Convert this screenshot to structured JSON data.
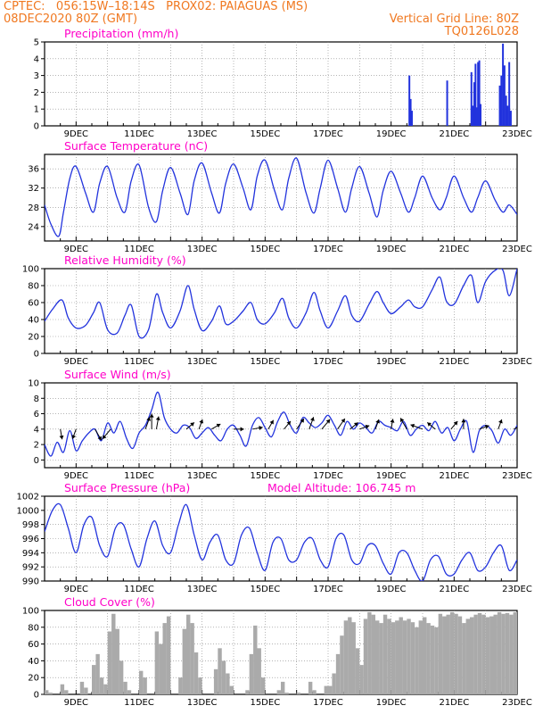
{
  "header": {
    "line1_left": "CPTEC:   056:15W–18:14S   PROX02: PAIAGUAS (MS)",
    "line2_left": "08DEC2020 80Z (GMT)",
    "line2_right": "Vertical Grid Line: 80Z",
    "line3_right": "TQ0126L028"
  },
  "colors": {
    "header": "#f07820",
    "title": "#ff00c8",
    "line": "#2233dd",
    "cloud": "#aaaaaa",
    "arrow": "#000000"
  },
  "chart_data": [
    {
      "id": "precip",
      "type": "bar",
      "title": "Precipitation (mm/h)",
      "subtitle": "",
      "xlabel": "",
      "ylabel": "",
      "xlim": [
        8.0,
        23.0
      ],
      "ylim": [
        0,
        5
      ],
      "yticks": [
        "0",
        "1",
        "2",
        "3",
        "4",
        "5"
      ],
      "xticks": [
        "9DEC",
        "11DEC",
        "13DEC",
        "15DEC",
        "17DEC",
        "19DEC",
        "21DEC",
        "23DEC"
      ],
      "xtick_values": [
        9,
        11,
        13,
        15,
        17,
        19,
        21,
        23
      ],
      "grid": true,
      "x": [
        19.58,
        19.62,
        19.66,
        20.78,
        21.55,
        21.6,
        21.64,
        21.68,
        21.72,
        21.76,
        21.8,
        21.84,
        22.45,
        22.5,
        22.55,
        22.6,
        22.65,
        22.7,
        22.75,
        22.8
      ],
      "values": [
        3.0,
        1.6,
        0.9,
        2.7,
        3.2,
        1.2,
        2.6,
        3.7,
        1.1,
        3.8,
        3.9,
        1.3,
        2.4,
        3.0,
        4.9,
        3.6,
        1.8,
        1.2,
        3.8,
        0.9
      ]
    },
    {
      "id": "temp",
      "type": "line",
      "title": "Surface Temperature (nC)",
      "subtitle": "",
      "xlabel": "",
      "ylabel": "",
      "xlim": [
        8.0,
        23.0
      ],
      "ylim": [
        21,
        39
      ],
      "yticks": [
        "24",
        "28",
        "32",
        "36"
      ],
      "ytick_values": [
        24,
        28,
        32,
        36
      ],
      "xticks": [
        "9DEC",
        "11DEC",
        "13DEC",
        "15DEC",
        "17DEC",
        "19DEC",
        "21DEC",
        "23DEC"
      ],
      "xtick_values": [
        9,
        11,
        13,
        15,
        17,
        19,
        21,
        23
      ],
      "grid": true,
      "x": [
        8.0,
        8.2,
        8.45,
        8.6,
        8.8,
        9.0,
        9.3,
        9.55,
        9.75,
        10.0,
        10.3,
        10.55,
        10.75,
        11.0,
        11.3,
        11.55,
        11.75,
        12.0,
        12.3,
        12.55,
        12.75,
        13.0,
        13.3,
        13.55,
        13.75,
        14.0,
        14.3,
        14.55,
        14.75,
        15.0,
        15.3,
        15.55,
        15.75,
        16.0,
        16.3,
        16.55,
        16.75,
        17.0,
        17.3,
        17.55,
        17.75,
        18.0,
        18.3,
        18.55,
        18.75,
        19.0,
        19.3,
        19.55,
        19.75,
        20.0,
        20.3,
        20.55,
        20.75,
        21.0,
        21.3,
        21.55,
        21.75,
        22.0,
        22.3,
        22.55,
        22.75,
        23.0
      ],
      "values": [
        28.5,
        24.5,
        22.0,
        27.0,
        34.0,
        36.5,
        31.0,
        27.0,
        33.0,
        36.5,
        30.0,
        27.0,
        33.5,
        36.8,
        28.0,
        25.0,
        31.5,
        36.3,
        31.0,
        26.5,
        33.5,
        37.2,
        31.0,
        26.8,
        33.0,
        37.0,
        32.0,
        27.5,
        34.5,
        37.8,
        31.5,
        27.5,
        34.0,
        38.2,
        31.0,
        26.8,
        32.0,
        37.8,
        32.0,
        27.0,
        32.0,
        36.5,
        31.0,
        26.0,
        31.5,
        35.5,
        31.0,
        27.0,
        30.0,
        34.5,
        30.0,
        27.5,
        30.0,
        34.5,
        30.0,
        27.0,
        30.0,
        33.5,
        29.5,
        27.0,
        28.5,
        26.5
      ]
    },
    {
      "id": "rh",
      "type": "line",
      "title": "Relative Humidity (%)",
      "subtitle": "",
      "xlabel": "",
      "ylabel": "",
      "xlim": [
        8.0,
        23.0
      ],
      "ylim": [
        0,
        100
      ],
      "yticks": [
        "0",
        "20",
        "40",
        "60",
        "80",
        "100"
      ],
      "ytick_values": [
        0,
        20,
        40,
        60,
        80,
        100
      ],
      "xticks": [
        "9DEC",
        "11DEC",
        "13DEC",
        "15DEC",
        "17DEC",
        "19DEC",
        "21DEC",
        "23DEC"
      ],
      "xtick_values": [
        9,
        11,
        13,
        15,
        17,
        19,
        21,
        23
      ],
      "grid": true,
      "x": [
        8.0,
        8.25,
        8.55,
        8.75,
        9.0,
        9.3,
        9.55,
        9.75,
        10.0,
        10.3,
        10.55,
        10.75,
        11.0,
        11.3,
        11.55,
        11.75,
        12.0,
        12.3,
        12.55,
        12.75,
        13.0,
        13.3,
        13.55,
        13.75,
        14.0,
        14.3,
        14.55,
        14.75,
        15.0,
        15.3,
        15.55,
        15.75,
        16.0,
        16.3,
        16.55,
        16.75,
        17.0,
        17.3,
        17.55,
        17.75,
        18.0,
        18.3,
        18.55,
        18.75,
        19.0,
        19.3,
        19.55,
        19.75,
        20.0,
        20.3,
        20.55,
        20.75,
        21.0,
        21.3,
        21.55,
        21.75,
        22.0,
        22.3,
        22.55,
        22.75,
        23.0
      ],
      "values": [
        38.0,
        52.0,
        63.0,
        42.0,
        30.0,
        33.0,
        48.0,
        60.0,
        28.0,
        24.0,
        45.0,
        57.0,
        20.0,
        28.0,
        70.0,
        48.0,
        30.0,
        50.0,
        80.0,
        52.0,
        27.0,
        38.0,
        56.0,
        35.0,
        38.0,
        50.0,
        60.0,
        40.0,
        35.0,
        48.0,
        65.0,
        42.0,
        30.0,
        48.0,
        72.0,
        50.0,
        30.0,
        50.0,
        68.0,
        45.0,
        38.0,
        58.0,
        73.0,
        60.0,
        47.0,
        55.0,
        63.0,
        55.0,
        55.0,
        75.0,
        90.0,
        62.0,
        58.0,
        80.0,
        92.0,
        60.0,
        85.0,
        98.0,
        98.0,
        68.0,
        100.0
      ]
    },
    {
      "id": "wind",
      "type": "line",
      "title": "Surface Wind (m/s)",
      "subtitle": "",
      "xlabel": "",
      "ylabel": "",
      "xlim": [
        8.0,
        23.0
      ],
      "ylim": [
        -1,
        10
      ],
      "yticks": [
        "0",
        "2",
        "4",
        "6",
        "8",
        "10"
      ],
      "ytick_values": [
        0,
        2,
        4,
        6,
        8,
        10
      ],
      "xticks": [
        "9DEC",
        "11DEC",
        "13DEC",
        "15DEC",
        "17DEC",
        "19DEC",
        "21DEC",
        "23DEC"
      ],
      "xtick_values": [
        9,
        11,
        13,
        15,
        17,
        19,
        21,
        23
      ],
      "grid": true,
      "x": [
        8.0,
        8.2,
        8.4,
        8.6,
        8.8,
        9.0,
        9.2,
        9.4,
        9.6,
        9.8,
        10.0,
        10.2,
        10.4,
        10.6,
        10.8,
        11.0,
        11.2,
        11.4,
        11.6,
        11.8,
        12.0,
        12.2,
        12.4,
        12.6,
        12.8,
        13.0,
        13.2,
        13.4,
        13.6,
        13.8,
        14.0,
        14.2,
        14.4,
        14.6,
        14.8,
        15.0,
        15.2,
        15.4,
        15.6,
        15.8,
        16.0,
        16.2,
        16.4,
        16.6,
        16.8,
        17.0,
        17.2,
        17.4,
        17.6,
        17.8,
        18.0,
        18.2,
        18.4,
        18.6,
        18.8,
        19.0,
        19.2,
        19.4,
        19.6,
        19.8,
        20.0,
        20.2,
        20.4,
        20.6,
        20.8,
        21.0,
        21.2,
        21.4,
        21.6,
        21.8,
        22.0,
        22.2,
        22.4,
        22.6,
        22.8,
        23.0
      ],
      "values": [
        2.0,
        0.5,
        2.3,
        1.0,
        3.8,
        1.2,
        2.5,
        3.5,
        4.0,
        2.5,
        4.8,
        3.5,
        5.0,
        2.8,
        1.5,
        3.5,
        4.5,
        6.5,
        8.8,
        5.5,
        4.0,
        3.5,
        4.5,
        4.2,
        2.8,
        3.5,
        4.2,
        3.2,
        2.5,
        4.0,
        4.5,
        3.2,
        1.8,
        4.5,
        5.5,
        4.2,
        3.0,
        5.0,
        6.2,
        4.5,
        3.5,
        5.5,
        4.8,
        4.2,
        4.8,
        5.8,
        4.5,
        3.2,
        5.0,
        4.0,
        4.8,
        4.2,
        3.5,
        5.0,
        4.5,
        4.2,
        3.8,
        5.0,
        3.2,
        4.0,
        4.5,
        3.8,
        5.0,
        3.5,
        4.2,
        2.5,
        4.0,
        5.0,
        1.0,
        3.8,
        4.5,
        3.8,
        2.2,
        4.0,
        3.2,
        4.5
      ],
      "vectors": {
        "x": [
          8.5,
          9.0,
          9.6,
          10.1,
          11.2,
          11.4,
          11.55,
          12.5,
          12.9,
          13.3,
          14.0,
          14.6,
          15.1,
          15.6,
          16.0,
          16.4,
          16.8,
          17.3,
          17.7,
          18.0,
          18.5,
          19.0,
          19.5,
          20.0,
          20.4,
          20.9,
          21.3,
          21.8,
          22.4,
          22.9
        ],
        "dir_deg": [
          350,
          20,
          330,
          40,
          200,
          180,
          190,
          230,
          200,
          240,
          270,
          260,
          210,
          220,
          215,
          200,
          220,
          215,
          230,
          250,
          200,
          190,
          150,
          110,
          130,
          220,
          180,
          250,
          200,
          240
        ],
        "speed": [
          2.0,
          2.0,
          3.0,
          3.0,
          3.0,
          4.0,
          3.0,
          2.0,
          2.0,
          2.0,
          2.0,
          2.0,
          2.0,
          2.0,
          3.0,
          3.0,
          3.0,
          3.0,
          2.0,
          2.0,
          2.0,
          2.0,
          3.0,
          3.0,
          2.0,
          2.0,
          2.0,
          2.0,
          2.0,
          2.0
        ]
      }
    },
    {
      "id": "pressure",
      "type": "line",
      "title": "Surface Pressure (hPa)",
      "subtitle": "Model Altitude: 106.745 m",
      "xlabel": "",
      "ylabel": "",
      "xlim": [
        8.0,
        23.0
      ],
      "ylim": [
        990,
        1002
      ],
      "yticks": [
        "990",
        "992",
        "994",
        "996",
        "998",
        "1000",
        "1002"
      ],
      "ytick_values": [
        990,
        992,
        994,
        996,
        998,
        1000,
        1002
      ],
      "xticks": [
        "9DEC",
        "11DEC",
        "13DEC",
        "15DEC",
        "17DEC",
        "19DEC",
        "21DEC",
        "23DEC"
      ],
      "xtick_values": [
        9,
        11,
        13,
        15,
        17,
        19,
        21,
        23
      ],
      "grid": true,
      "x": [
        8.0,
        8.25,
        8.5,
        8.75,
        9.0,
        9.25,
        9.5,
        9.75,
        10.0,
        10.25,
        10.5,
        10.75,
        11.0,
        11.25,
        11.5,
        11.75,
        12.0,
        12.25,
        12.5,
        12.75,
        13.0,
        13.25,
        13.5,
        13.75,
        14.0,
        14.25,
        14.5,
        14.75,
        15.0,
        15.25,
        15.5,
        15.75,
        16.0,
        16.25,
        16.5,
        16.75,
        17.0,
        17.25,
        17.5,
        17.75,
        18.0,
        18.25,
        18.5,
        18.75,
        19.0,
        19.25,
        19.5,
        19.75,
        20.0,
        20.25,
        20.5,
        20.75,
        21.0,
        21.25,
        21.5,
        21.75,
        22.0,
        22.25,
        22.5,
        22.75,
        23.0
      ],
      "values": [
        997.0,
        1000.0,
        1000.8,
        997.5,
        994.0,
        998.0,
        999.0,
        995.0,
        993.5,
        997.5,
        998.0,
        994.5,
        992.0,
        996.0,
        998.5,
        995.0,
        994.0,
        998.0,
        1000.8,
        996.5,
        993.0,
        995.5,
        996.5,
        993.0,
        992.5,
        996.5,
        997.5,
        994.0,
        991.5,
        995.5,
        996.0,
        993.0,
        993.0,
        995.5,
        996.0,
        993.0,
        992.0,
        996.0,
        996.5,
        993.0,
        992.5,
        995.0,
        995.0,
        992.5,
        991.0,
        994.0,
        994.0,
        991.5,
        990.0,
        993.0,
        993.5,
        991.0,
        991.0,
        993.0,
        994.0,
        991.5,
        992.0,
        994.0,
        995.0,
        991.5,
        993.0
      ]
    },
    {
      "id": "cloud",
      "type": "bar",
      "title": "Cloud Cover (%)",
      "subtitle": "",
      "xlabel": "",
      "ylabel": "",
      "xlim": [
        8.0,
        23.0
      ],
      "ylim": [
        0,
        100
      ],
      "yticks": [
        "0",
        "20",
        "40",
        "60",
        "80",
        "100"
      ],
      "ytick_values": [
        0,
        20,
        40,
        60,
        80,
        100
      ],
      "xticks": [
        "9DEC",
        "11DEC",
        "13DEC",
        "15DEC",
        "17DEC",
        "19DEC",
        "21DEC",
        "23DEC"
      ],
      "xtick_values": [
        9,
        11,
        13,
        15,
        17,
        19,
        21,
        23
      ],
      "grid": true,
      "x": [
        8.0,
        8.125,
        8.25,
        8.375,
        8.5,
        8.625,
        8.75,
        8.875,
        9.0,
        9.125,
        9.25,
        9.375,
        9.5,
        9.625,
        9.75,
        9.875,
        10.0,
        10.125,
        10.25,
        10.375,
        10.5,
        10.625,
        10.75,
        10.875,
        11.0,
        11.125,
        11.25,
        11.375,
        11.5,
        11.625,
        11.75,
        11.875,
        12.0,
        12.125,
        12.25,
        12.375,
        12.5,
        12.625,
        12.75,
        12.875,
        13.0,
        13.125,
        13.25,
        13.375,
        13.5,
        13.625,
        13.75,
        13.875,
        14.0,
        14.125,
        14.25,
        14.375,
        14.5,
        14.625,
        14.75,
        14.875,
        15.0,
        15.125,
        15.25,
        15.375,
        15.5,
        15.625,
        15.75,
        15.875,
        16.0,
        16.125,
        16.25,
        16.375,
        16.5,
        16.625,
        16.75,
        16.875,
        17.0,
        17.125,
        17.25,
        17.375,
        17.5,
        17.625,
        17.75,
        17.875,
        18.0,
        18.125,
        18.25,
        18.375,
        18.5,
        18.625,
        18.75,
        18.875,
        19.0,
        19.125,
        19.25,
        19.375,
        19.5,
        19.625,
        19.75,
        19.875,
        20.0,
        20.125,
        20.25,
        20.375,
        20.5,
        20.625,
        20.75,
        20.875,
        21.0,
        21.125,
        21.25,
        21.375,
        21.5,
        21.625,
        21.75,
        21.875,
        22.0,
        22.125,
        22.25,
        22.375,
        22.5,
        22.625,
        22.75,
        22.875
      ],
      "values": [
        5,
        2,
        0,
        0,
        12,
        5,
        0,
        0,
        0,
        15,
        8,
        0,
        35,
        48,
        20,
        12,
        75,
        96,
        78,
        40,
        15,
        5,
        0,
        0,
        28,
        20,
        0,
        0,
        75,
        60,
        85,
        93,
        0,
        0,
        20,
        78,
        95,
        85,
        50,
        20,
        0,
        0,
        0,
        30,
        55,
        40,
        25,
        10,
        0,
        0,
        0,
        5,
        48,
        82,
        55,
        20,
        0,
        0,
        0,
        5,
        15,
        2,
        0,
        0,
        2,
        0,
        0,
        15,
        5,
        0,
        0,
        10,
        10,
        25,
        48,
        70,
        88,
        92,
        86,
        55,
        35,
        90,
        98,
        95,
        88,
        85,
        95,
        90,
        86,
        88,
        92,
        88,
        90,
        86,
        80,
        88,
        92,
        85,
        82,
        80,
        96,
        93,
        95,
        98,
        96,
        93,
        85,
        90,
        92,
        95,
        97,
        95,
        92,
        93,
        95,
        98,
        96,
        97,
        95,
        98
      ]
    }
  ]
}
